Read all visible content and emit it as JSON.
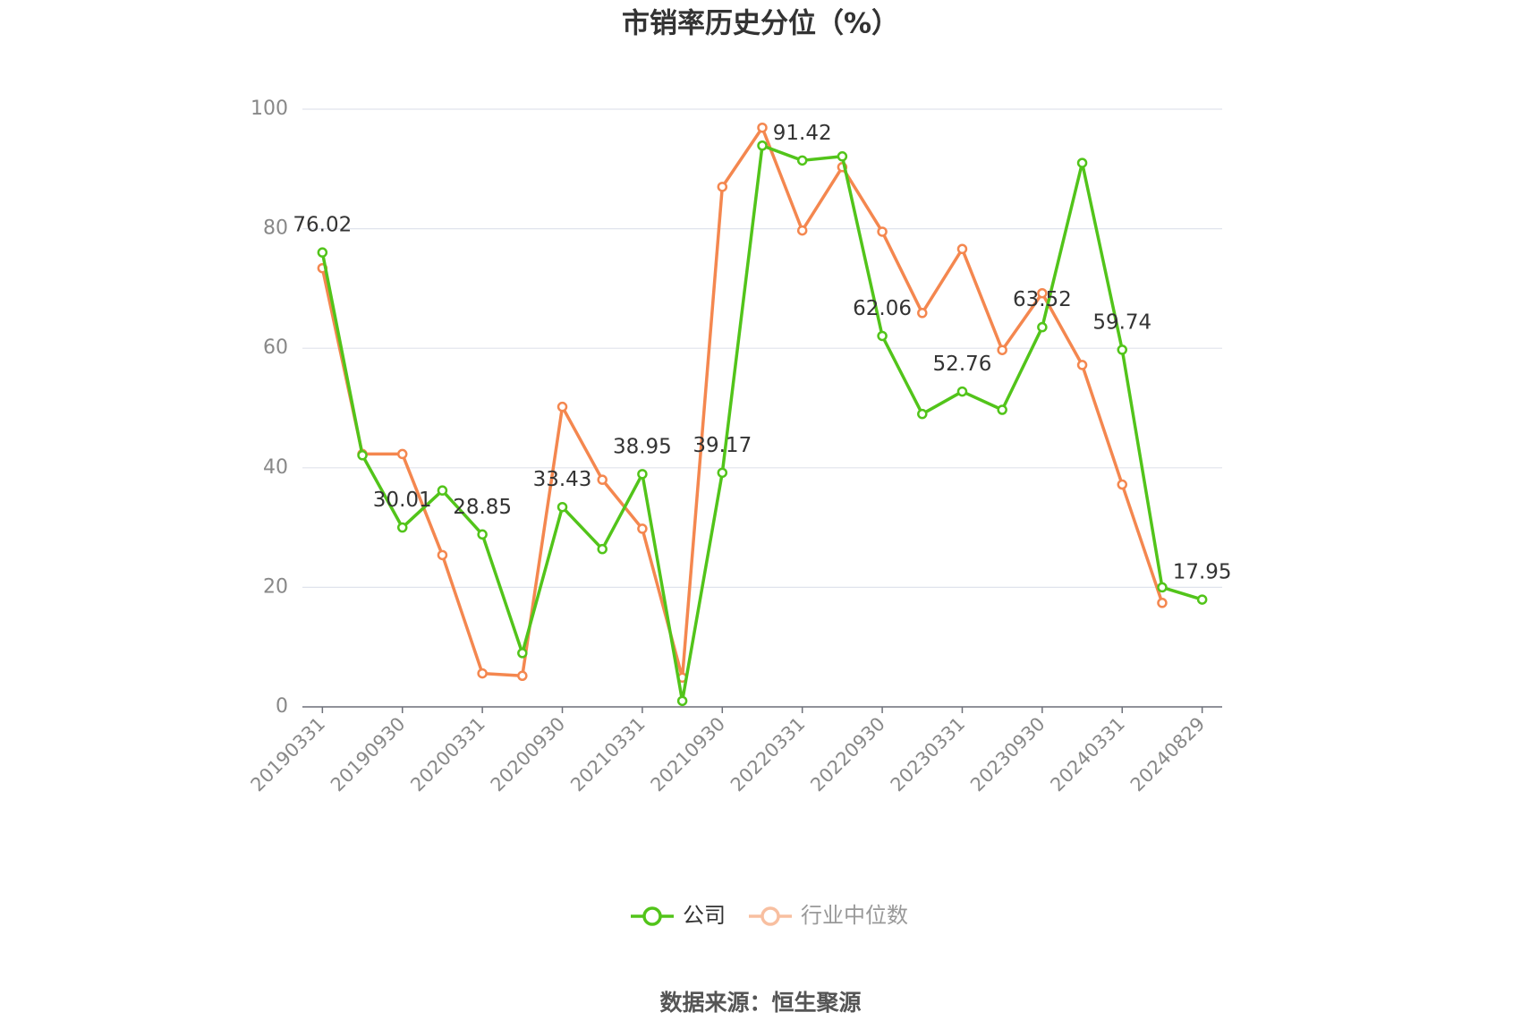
{
  "chart_data": {
    "type": "line",
    "title": "市销率历史分位（%）",
    "source": "数据来源：恒生聚源",
    "categories": [
      "20190331",
      null,
      "20190930",
      null,
      "20200331",
      null,
      "20200930",
      null,
      "20210331",
      null,
      "20210930",
      null,
      "20220331",
      null,
      "20220930",
      null,
      "20230331",
      null,
      "20230930",
      null,
      "20240331",
      null,
      "20240829"
    ],
    "series": [
      {
        "name": "公司",
        "color": "#52c41a",
        "values": [
          76.02,
          42.1,
          30.01,
          36.2,
          28.85,
          9.0,
          33.43,
          26.4,
          38.95,
          1.0,
          39.17,
          93.9,
          91.42,
          92.1,
          62.06,
          49.0,
          52.76,
          49.7,
          63.52,
          91.0,
          59.74,
          20.0,
          17.95
        ],
        "value_labels": [
          "76.02",
          null,
          "30.01",
          null,
          "28.85",
          null,
          "33.43",
          null,
          "38.95",
          null,
          "39.17",
          null,
          "91.42",
          null,
          "62.06",
          null,
          "52.76",
          null,
          "63.52",
          null,
          "59.74",
          null,
          "17.95"
        ]
      },
      {
        "name": "行业中位数",
        "color": "#f4874f",
        "values": [
          73.4,
          42.3,
          42.3,
          25.4,
          5.6,
          5.2,
          50.2,
          38.0,
          29.8,
          4.9,
          87.0,
          96.9,
          79.7,
          90.3,
          79.5,
          65.9,
          76.6,
          59.7,
          69.2,
          57.2,
          37.2,
          17.4,
          null
        ]
      }
    ],
    "ylim": [
      0,
      100
    ],
    "yticks": [
      0,
      20,
      40,
      60,
      80,
      100
    ],
    "grid": true,
    "legend": "bottom"
  }
}
